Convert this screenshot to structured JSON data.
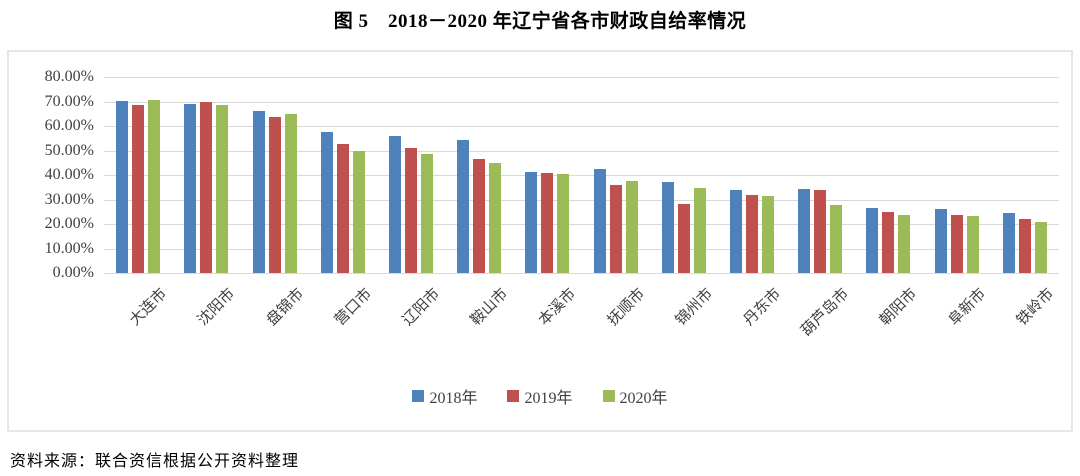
{
  "title": "图 5　2018－2020 年辽宁省各市财政自给率情况",
  "source_note": "资料来源：联合资信根据公开资料整理",
  "chart_data": {
    "type": "bar",
    "title": "图 5　2018－2020 年辽宁省各市财政自给率情况",
    "categories": [
      "大连市",
      "沈阳市",
      "盘锦市",
      "营口市",
      "辽阳市",
      "鞍山市",
      "本溪市",
      "抚顺市",
      "锦州市",
      "丹东市",
      "葫芦岛市",
      "朝阳市",
      "阜新市",
      "铁岭市"
    ],
    "series": [
      {
        "name": "2018年",
        "color": "#4F81BD",
        "values": [
          70.3,
          69.0,
          66.0,
          57.7,
          56.0,
          54.4,
          41.4,
          42.5,
          37.0,
          33.7,
          34.3,
          26.5,
          26.3,
          24.4
        ]
      },
      {
        "name": "2019年",
        "color": "#C0504D",
        "values": [
          68.5,
          70.0,
          63.5,
          52.8,
          51.0,
          46.6,
          41.0,
          36.0,
          28.0,
          32.0,
          33.7,
          24.8,
          23.6,
          22.0
        ]
      },
      {
        "name": "2020年",
        "color": "#9BBB59",
        "values": [
          70.5,
          68.5,
          65.0,
          50.0,
          48.7,
          45.0,
          40.5,
          37.4,
          34.5,
          31.4,
          27.8,
          23.8,
          23.4,
          21.0
        ]
      }
    ],
    "xlabel": "",
    "ylabel": "",
    "ylim": [
      0,
      80
    ],
    "ytick_step": 10,
    "yticks": [
      "0.00%",
      "10.00%",
      "20.00%",
      "30.00%",
      "40.00%",
      "50.00%",
      "60.00%",
      "70.00%",
      "80.00%"
    ],
    "grid": true,
    "legend_position": "bottom",
    "gridline_color": "#d9d9d9"
  }
}
